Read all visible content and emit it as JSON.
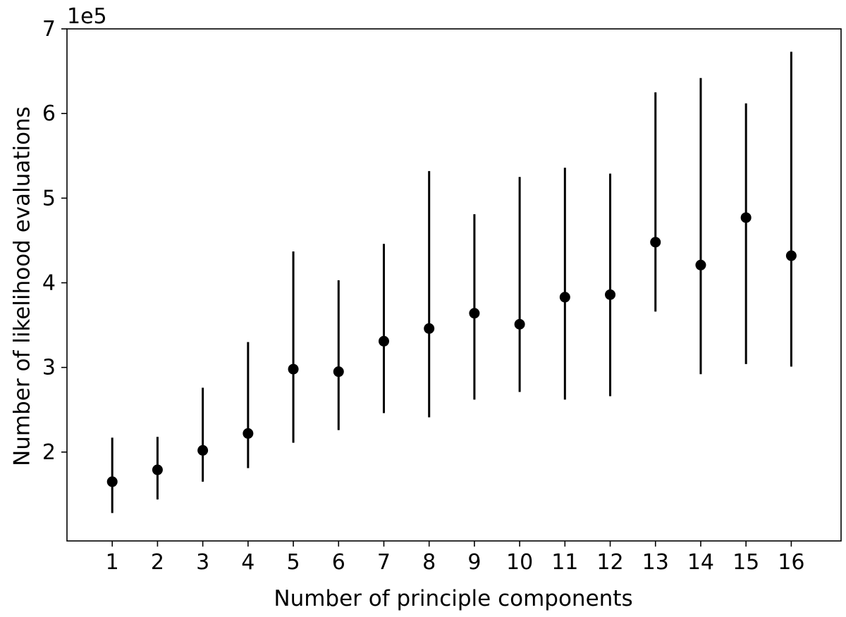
{
  "chart_data": {
    "type": "scatter",
    "title": "",
    "xlabel": "Number of principle components",
    "ylabel": "Number of likelihood evaluations",
    "y_scale_label": "1e5",
    "xlim": [
      0.0,
      17.1
    ],
    "ylim": [
      0.95,
      7.0
    ],
    "x_ticks": [
      1,
      2,
      3,
      4,
      5,
      6,
      7,
      8,
      9,
      10,
      11,
      12,
      13,
      14,
      15,
      16
    ],
    "y_ticks": [
      2,
      3,
      4,
      5,
      6,
      7
    ],
    "y_unit_note": "values in units of 1e5",
    "grid": false,
    "legend": false,
    "marker_color": "#000000",
    "errorbar_color": "#000000",
    "series": [
      {
        "x": [
          1,
          2,
          3,
          4,
          5,
          6,
          7,
          8,
          9,
          10,
          11,
          12,
          13,
          14,
          15,
          16
        ],
        "y": [
          1.65,
          1.79,
          2.02,
          2.22,
          2.98,
          2.95,
          3.31,
          3.46,
          3.64,
          3.51,
          3.83,
          3.86,
          4.48,
          4.21,
          4.77,
          4.32
        ],
        "y_low": [
          1.28,
          1.44,
          1.65,
          1.81,
          2.11,
          2.26,
          2.46,
          2.41,
          2.62,
          2.71,
          2.62,
          2.66,
          3.66,
          2.92,
          3.04,
          3.01
        ],
        "y_high": [
          2.17,
          2.18,
          2.76,
          3.3,
          4.37,
          4.03,
          4.46,
          5.32,
          4.81,
          5.25,
          5.36,
          5.29,
          6.25,
          6.42,
          6.12,
          6.73
        ]
      }
    ]
  }
}
